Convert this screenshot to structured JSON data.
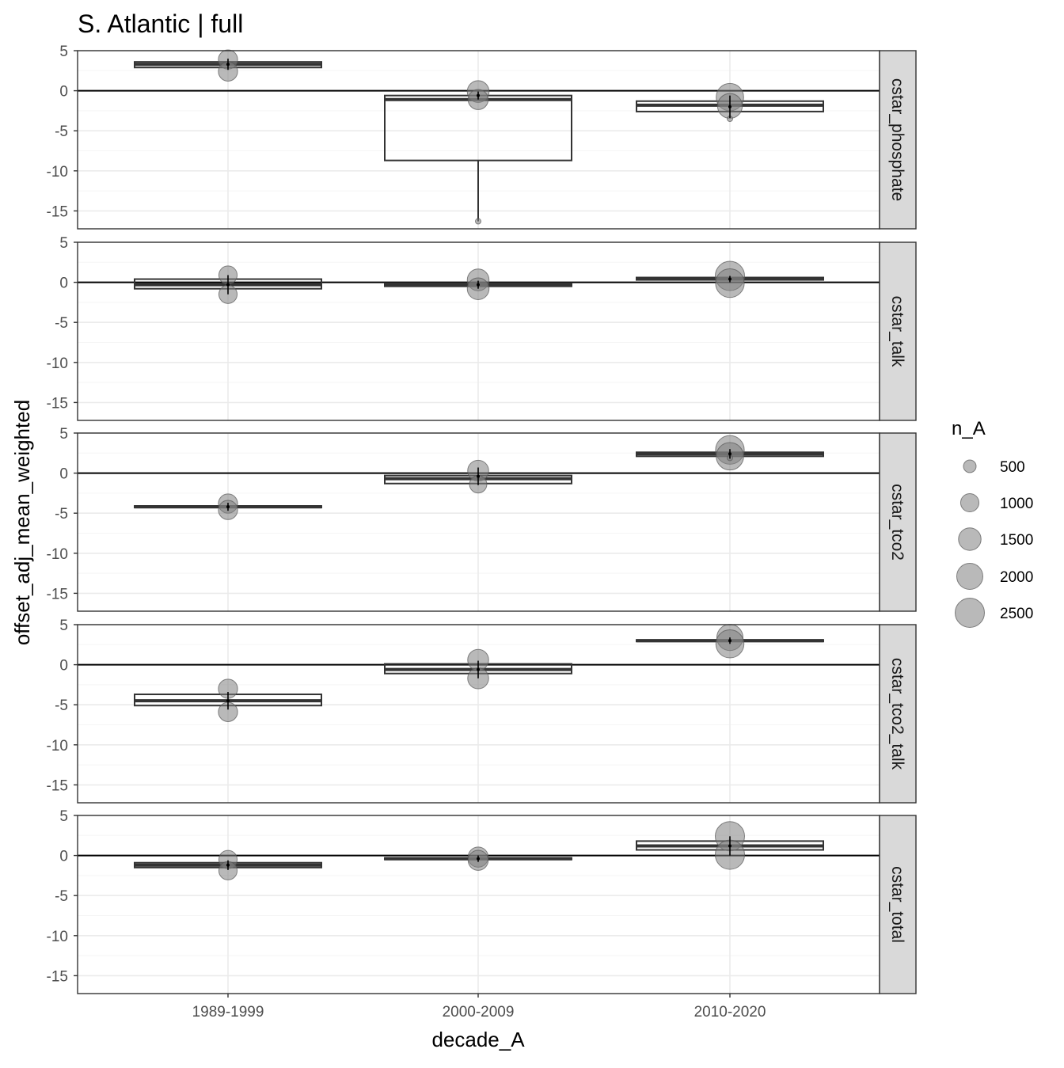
{
  "chart_data": {
    "type": "boxplot",
    "title": "S. Atlantic | full",
    "xlabel": "decade_A",
    "ylabel": "offset_adj_mean_weighted",
    "categories": [
      "1989-1999",
      "2000-2009",
      "2010-2020"
    ],
    "ylim": [
      -17.2,
      5
    ],
    "yticks": [
      5,
      0,
      -5,
      -10,
      -15
    ],
    "reference_line": 0,
    "grid": true,
    "legend": {
      "title": "n_A",
      "position": "right",
      "entries": [
        500,
        1000,
        1500,
        2000,
        2500
      ]
    },
    "colors": {
      "panel_border": "#333333",
      "strip_fill": "#d9d9d9",
      "grid_major": "#ebebeb",
      "grid_minor": "#f5f5f5",
      "box_line": "#333333",
      "point_fill": "#808080",
      "zero_line": "#000000"
    },
    "panels": [
      {
        "label": "cstar_phosphate",
        "boxes": [
          {
            "category": "1989-1999",
            "q1": 2.9,
            "median": 3.3,
            "q3": 3.6,
            "low": 2.9,
            "high": 3.6
          },
          {
            "category": "2000-2009",
            "q1": -8.7,
            "median": -1.1,
            "q3": -0.6,
            "low": -16.3,
            "high": -0.6
          },
          {
            "category": "2010-2020",
            "q1": -2.6,
            "median": -1.8,
            "q3": -1.3,
            "low": -2.6,
            "high": -1.3
          }
        ],
        "points": [
          {
            "category": "1989-1999",
            "y": 3.9,
            "n": 1100
          },
          {
            "category": "1989-1999",
            "y": 2.4,
            "n": 1100
          },
          {
            "category": "2000-2009",
            "y": -0.1,
            "n": 1400
          },
          {
            "category": "2000-2009",
            "y": -1.1,
            "n": 1200
          },
          {
            "category": "2000-2009",
            "y": -16.3,
            "n": 100
          },
          {
            "category": "2010-2020",
            "y": -0.8,
            "n": 2200
          },
          {
            "category": "2010-2020",
            "y": -1.9,
            "n": 1800
          },
          {
            "category": "2010-2020",
            "y": -3.5,
            "n": 300
          }
        ],
        "mean_marks": [
          {
            "category": "1989-1999",
            "y": 3.3,
            "half": 0.7
          },
          {
            "category": "2000-2009",
            "y": -0.6,
            "half": 0.5
          },
          {
            "category": "2010-2020",
            "y": -2.0,
            "half": 1.4
          }
        ]
      },
      {
        "label": "cstar_talk",
        "boxes": [
          {
            "category": "1989-1999",
            "q1": -0.8,
            "median": -0.3,
            "q3": 0.4,
            "low": -0.8,
            "high": 0.4
          },
          {
            "category": "2000-2009",
            "q1": -0.5,
            "median": -0.3,
            "q3": -0.1,
            "low": -0.5,
            "high": -0.1
          },
          {
            "category": "2010-2020",
            "q1": 0.3,
            "median": 0.4,
            "q3": 0.6,
            "low": 0.3,
            "high": 0.6
          }
        ],
        "points": [
          {
            "category": "1989-1999",
            "y": 0.9,
            "n": 1000
          },
          {
            "category": "1989-1999",
            "y": -1.5,
            "n": 1000
          },
          {
            "category": "2000-2009",
            "y": 0.3,
            "n": 1400
          },
          {
            "category": "2000-2009",
            "y": -0.8,
            "n": 1400
          },
          {
            "category": "2010-2020",
            "y": 0.8,
            "n": 2500
          },
          {
            "category": "2010-2020",
            "y": -0.1,
            "n": 2400
          }
        ],
        "mean_marks": [
          {
            "category": "1989-1999",
            "y": -0.3,
            "half": 1.2
          },
          {
            "category": "2000-2009",
            "y": -0.3,
            "half": 0.5
          },
          {
            "category": "2010-2020",
            "y": 0.4,
            "half": 0.4
          }
        ]
      },
      {
        "label": "cstar_tco2",
        "boxes": [
          {
            "category": "1989-1999",
            "q1": -4.3,
            "median": -4.2,
            "q3": -4.1,
            "low": -4.3,
            "high": -4.1
          },
          {
            "category": "2000-2009",
            "q1": -1.3,
            "median": -0.7,
            "q3": -0.3,
            "low": -1.3,
            "high": -0.3
          },
          {
            "category": "2010-2020",
            "q1": 2.1,
            "median": 2.4,
            "q3": 2.6,
            "low": 2.1,
            "high": 2.6
          }
        ],
        "points": [
          {
            "category": "1989-1999",
            "y": -3.8,
            "n": 1100
          },
          {
            "category": "1989-1999",
            "y": -4.6,
            "n": 1100
          },
          {
            "category": "2000-2009",
            "y": 0.3,
            "n": 1300
          },
          {
            "category": "2000-2009",
            "y": -1.4,
            "n": 900
          },
          {
            "category": "2010-2020",
            "y": 2.9,
            "n": 2400
          },
          {
            "category": "2010-2020",
            "y": 2.1,
            "n": 2200
          },
          {
            "category": "2010-2020",
            "y": 1.9,
            "n": 400
          }
        ],
        "mean_marks": [
          {
            "category": "1989-1999",
            "y": -4.2,
            "half": 0.5
          },
          {
            "category": "2000-2009",
            "y": -0.4,
            "half": 1.1
          },
          {
            "category": "2010-2020",
            "y": 2.4,
            "half": 0.6
          }
        ]
      },
      {
        "label": "cstar_tco2_talk",
        "boxes": [
          {
            "category": "1989-1999",
            "q1": -5.1,
            "median": -4.5,
            "q3": -3.7,
            "low": -5.1,
            "high": -3.7
          },
          {
            "category": "2000-2009",
            "q1": -1.1,
            "median": -0.6,
            "q3": 0.1,
            "low": -1.1,
            "high": 0.1
          },
          {
            "category": "2010-2020",
            "q1": 2.9,
            "median": 3.0,
            "q3": 3.1,
            "low": 2.9,
            "high": 3.1
          }
        ],
        "points": [
          {
            "category": "1989-1999",
            "y": -3.0,
            "n": 1100
          },
          {
            "category": "1989-1999",
            "y": -5.9,
            "n": 1100
          },
          {
            "category": "2000-2009",
            "y": 0.6,
            "n": 1300
          },
          {
            "category": "2000-2009",
            "y": -1.7,
            "n": 1300
          },
          {
            "category": "2010-2020",
            "y": 3.4,
            "n": 2000
          },
          {
            "category": "2010-2020",
            "y": 2.6,
            "n": 2300
          }
        ],
        "mean_marks": [
          {
            "category": "1989-1999",
            "y": -4.5,
            "half": 1.1
          },
          {
            "category": "2000-2009",
            "y": -0.6,
            "half": 1.1
          },
          {
            "category": "2010-2020",
            "y": 3.0,
            "half": 0.4
          }
        ]
      },
      {
        "label": "cstar_total",
        "boxes": [
          {
            "category": "1989-1999",
            "q1": -1.5,
            "median": -1.2,
            "q3": -0.9,
            "low": -1.5,
            "high": -0.9
          },
          {
            "category": "2000-2009",
            "q1": -0.5,
            "median": -0.4,
            "q3": -0.3,
            "low": -0.5,
            "high": -0.3
          },
          {
            "category": "2010-2020",
            "q1": 0.7,
            "median": 1.2,
            "q3": 1.8,
            "low": 0.7,
            "high": 1.8
          }
        ],
        "points": [
          {
            "category": "1989-1999",
            "y": -0.5,
            "n": 1000
          },
          {
            "category": "1989-1999",
            "y": -1.9,
            "n": 1000
          },
          {
            "category": "2000-2009",
            "y": -0.2,
            "n": 1200
          },
          {
            "category": "2000-2009",
            "y": -0.6,
            "n": 1200
          },
          {
            "category": "2010-2020",
            "y": 2.4,
            "n": 2500
          },
          {
            "category": "2010-2020",
            "y": 0.1,
            "n": 2500
          }
        ],
        "mean_marks": [
          {
            "category": "1989-1999",
            "y": -1.2,
            "half": 0.6
          },
          {
            "category": "2000-2009",
            "y": -0.4,
            "half": 0.4
          },
          {
            "category": "2010-2020",
            "y": 1.2,
            "half": 1.2
          }
        ]
      }
    ]
  }
}
